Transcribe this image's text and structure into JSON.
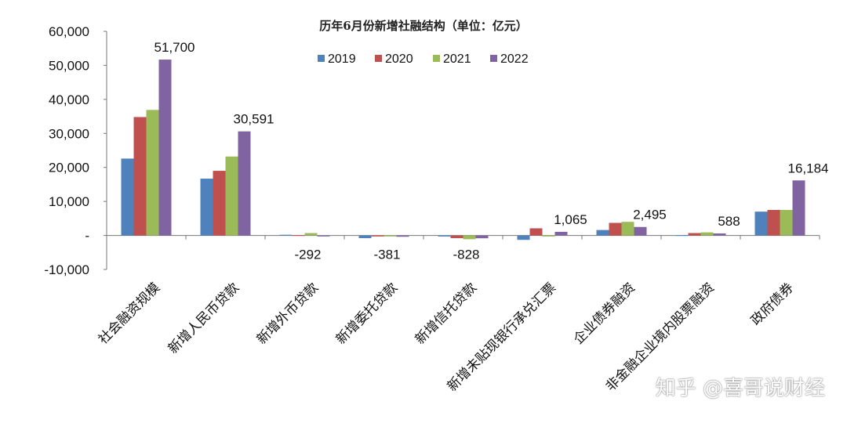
{
  "chart_data": {
    "type": "bar",
    "title": "历年6月份新增社融结构（单位：亿元）",
    "categories": [
      "社会融资规模",
      "新增人民币贷款",
      "新增外币贷款",
      "新增委托贷款",
      "新增信托贷款",
      "新增未贴现银行承兑汇票",
      "企业债券融资",
      "非金融企业境内股票融资",
      "政府债券"
    ],
    "series": [
      {
        "name": "2019",
        "color": "#4f81bd",
        "values": [
          22600,
          16700,
          200,
          -800,
          -300,
          -1300,
          1600,
          100,
          7000
        ]
      },
      {
        "name": "2020",
        "color": "#c0504d",
        "values": [
          34800,
          19000,
          100,
          -300,
          -800,
          2100,
          3700,
          700,
          7500
        ]
      },
      {
        "name": "2021",
        "color": "#9bbb59",
        "values": [
          36900,
          23200,
          700,
          -300,
          -1100,
          -300,
          4000,
          900,
          7500
        ]
      },
      {
        "name": "2022",
        "color": "#8064a2",
        "values": [
          51700,
          30591,
          -292,
          -381,
          -828,
          1065,
          2495,
          588,
          16184
        ]
      }
    ],
    "data_labels": [
      "51,700",
      "30,591",
      "-292",
      "-381",
      "-828",
      "1,065",
      "2,495",
      "588",
      "16,184"
    ],
    "yticks": [
      "60,000",
      "50,000",
      "40,000",
      "30,000",
      "20,000",
      "10,000",
      "-",
      "-10,000"
    ],
    "ytick_values": [
      60000,
      50000,
      40000,
      30000,
      20000,
      10000,
      0,
      -10000
    ],
    "ylim": [
      -10000,
      60000
    ],
    "legend_position": "top-center",
    "grid": false
  },
  "watermark": "知乎 @喜哥说财经"
}
